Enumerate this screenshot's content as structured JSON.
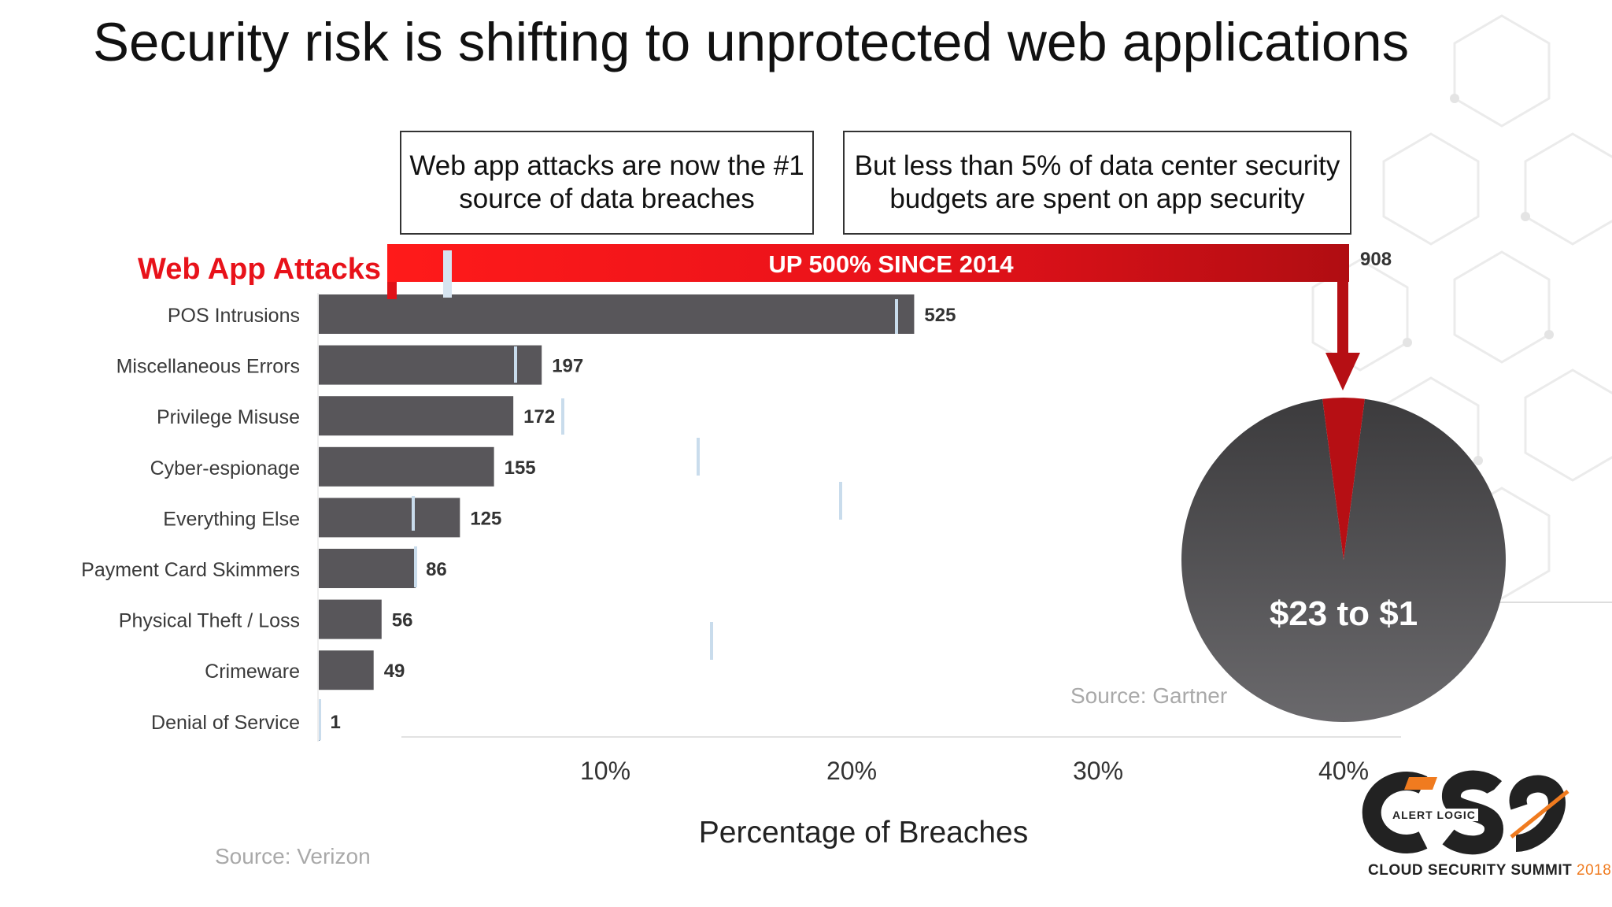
{
  "slide": {
    "title": "Security risk is shifting to unprotected web applications",
    "callouts": [
      "Web app attacks are now the #1 source of data breaches",
      "But less than 5% of data center security budgets are spent on app security"
    ],
    "source_left": "Source: Verizon",
    "source_right": "Source: Gartner",
    "logo": {
      "alert_logic": "ALERT LOGIC",
      "summit": "CLOUD SECURITY SUMMIT",
      "year": "2018"
    }
  },
  "colors": {
    "bar": "#58565a",
    "highlight_red": "#e8121a",
    "dark_red": "#b60f14",
    "pie_top": "#3c3b3d",
    "pie_bottom": "#6a696c",
    "tick_text": "#333333",
    "accent_orange": "#f07b1f"
  },
  "chart_data": [
    {
      "type": "bar",
      "orientation": "horizontal",
      "highlight": {
        "category": "Web App Attacks",
        "value": 908,
        "banner_text": "UP 500% SINCE 2014"
      },
      "categories": [
        "POS Intrusions",
        "Miscellaneous Errors",
        "Privilege Misuse",
        "Cyber-espionage",
        "Everything Else",
        "Payment Card Skimmers",
        "Physical Theft / Loss",
        "Crimeware",
        "Denial of Service"
      ],
      "values": [
        525,
        197,
        172,
        155,
        125,
        86,
        56,
        49,
        1
      ],
      "x_ticks": [
        "10%",
        "20%",
        "30%",
        "40%"
      ],
      "xlabel": "Percentage of Breaches",
      "xlim": [
        0,
        908
      ],
      "grid": false,
      "legend": "none"
    },
    {
      "type": "pie",
      "label": "$23 to $1",
      "slices": [
        {
          "value": 23
        },
        {
          "value": 1
        }
      ]
    }
  ]
}
